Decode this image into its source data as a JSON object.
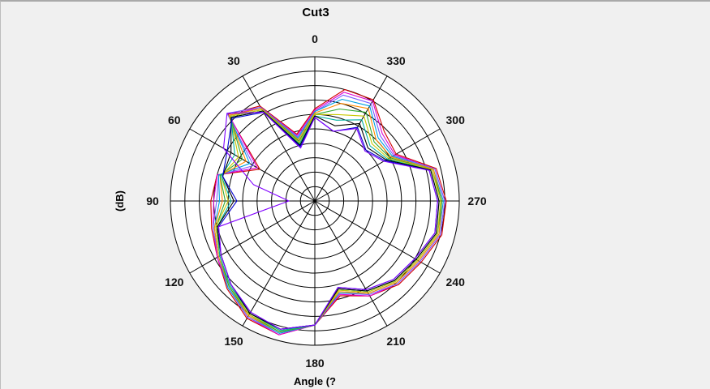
{
  "chart_data": {
    "type": "polar-line",
    "title": "Cut3",
    "xlabel": "Angle (?",
    "ylabel": "(dB)",
    "angle_direction": "counterclockwise",
    "zero_location": "top",
    "angle_ticks": [
      0,
      30,
      60,
      90,
      120,
      150,
      180,
      210,
      240,
      270,
      300,
      330
    ],
    "rlim": [
      0,
      10
    ],
    "rings": 10,
    "grid": true,
    "legend": "none",
    "angles": [
      0,
      15,
      30,
      45,
      60,
      75,
      90,
      105,
      120,
      135,
      150,
      165,
      180,
      195,
      210,
      225,
      240,
      255,
      270,
      285,
      300,
      315,
      330,
      345
    ],
    "series": [
      {
        "color": "#d10000",
        "values": [
          6.4,
          4.8,
          7.6,
          8.5,
          4.4,
          7.0,
          7.2,
          7.4,
          7.8,
          8.6,
          9.4,
          9.6,
          8.6,
          6.8,
          7.6,
          8.2,
          8.5,
          9.1,
          9.1,
          8.7,
          6.5,
          6.8,
          8.1,
          8.0
        ]
      },
      {
        "color": "#e000d0",
        "values": [
          6.3,
          4.7,
          7.5,
          8.4,
          4.6,
          7.0,
          7.0,
          7.3,
          7.8,
          8.5,
          9.3,
          9.6,
          8.6,
          6.7,
          7.6,
          8.1,
          8.4,
          9.0,
          9.0,
          8.6,
          6.4,
          6.6,
          8.0,
          7.8
        ]
      },
      {
        "color": "#7a5cff",
        "values": [
          6.2,
          4.6,
          7.5,
          8.6,
          4.9,
          6.9,
          6.8,
          7.3,
          7.7,
          8.5,
          9.3,
          9.5,
          8.6,
          6.6,
          7.5,
          8.1,
          8.4,
          9.0,
          9.0,
          8.6,
          6.3,
          6.4,
          7.8,
          7.6
        ]
      },
      {
        "color": "#00a0e0",
        "values": [
          6.2,
          4.5,
          7.4,
          8.4,
          5.2,
          6.9,
          6.6,
          7.2,
          7.7,
          8.5,
          9.2,
          9.5,
          8.6,
          6.6,
          7.4,
          8.0,
          8.3,
          8.9,
          8.9,
          8.5,
          6.2,
          6.2,
          7.6,
          7.3
        ]
      },
      {
        "color": "#ff8c00",
        "values": [
          6.1,
          4.4,
          7.4,
          8.4,
          5.5,
          6.8,
          6.4,
          7.2,
          7.7,
          8.4,
          9.2,
          9.4,
          8.6,
          6.5,
          7.4,
          8.0,
          8.3,
          8.9,
          8.8,
          8.5,
          6.1,
          6.0,
          7.4,
          7.0
        ]
      },
      {
        "color": "#2ea82e",
        "values": [
          6.0,
          4.3,
          7.3,
          8.3,
          5.8,
          6.8,
          6.2,
          7.1,
          7.6,
          8.4,
          9.1,
          9.4,
          8.6,
          6.4,
          7.3,
          7.9,
          8.2,
          8.8,
          8.8,
          8.4,
          6.0,
          5.8,
          7.1,
          6.6
        ]
      },
      {
        "color": "#c8c800",
        "values": [
          6.0,
          4.2,
          7.3,
          8.3,
          6.1,
          6.7,
          6.0,
          7.1,
          7.6,
          8.3,
          9.1,
          9.3,
          8.6,
          6.4,
          7.3,
          7.9,
          8.2,
          8.8,
          8.7,
          8.4,
          5.9,
          5.6,
          6.8,
          6.2
        ]
      },
      {
        "color": "#00b0a0",
        "values": [
          5.9,
          4.1,
          7.2,
          8.2,
          6.4,
          6.7,
          5.8,
          7.0,
          7.6,
          8.3,
          9.0,
          9.3,
          8.6,
          6.3,
          7.2,
          7.8,
          8.1,
          8.7,
          8.6,
          8.3,
          5.8,
          5.4,
          6.5,
          5.8
        ]
      },
      {
        "color": "#000000",
        "values": [
          5.9,
          4.0,
          7.2,
          8.2,
          6.7,
          6.6,
          5.6,
          7.0,
          7.5,
          8.2,
          9.0,
          9.2,
          8.6,
          6.3,
          7.2,
          7.8,
          8.1,
          8.7,
          8.6,
          8.3,
          5.7,
          5.2,
          6.2,
          5.4
        ]
      },
      {
        "color": "#0000d0",
        "values": [
          5.8,
          3.9,
          7.1,
          8.1,
          7.0,
          6.6,
          5.4,
          6.9,
          7.5,
          8.2,
          8.9,
          9.2,
          8.6,
          6.2,
          7.1,
          7.7,
          8.0,
          8.6,
          8.5,
          8.2,
          5.6,
          5.0,
          5.9,
          5.0
        ]
      },
      {
        "color": "#8000ff",
        "values": [
          5.8,
          3.8,
          7.1,
          8.6,
          7.3,
          4.4,
          1.8,
          6.9,
          7.5,
          8.2,
          8.9,
          9.2,
          8.6,
          6.2,
          7.1,
          7.7,
          8.0,
          8.6,
          8.5,
          8.2,
          5.5,
          4.9,
          5.8,
          5.0
        ]
      }
    ]
  }
}
